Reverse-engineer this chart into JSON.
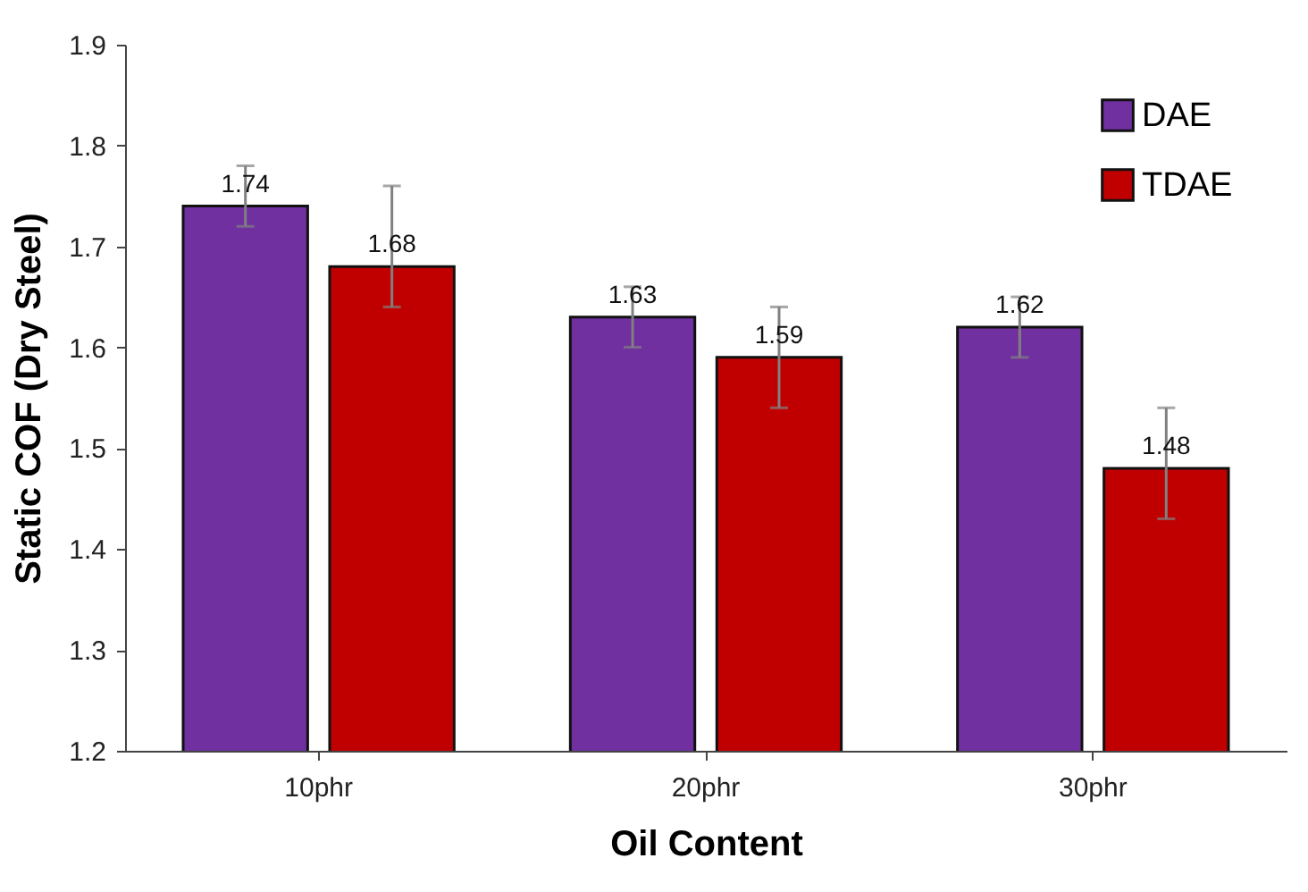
{
  "chart_data": {
    "type": "bar",
    "xlabel": "Oil Content",
    "ylabel": "Static COF (Dry Steel)",
    "categories": [
      "10phr",
      "20phr",
      "30phr"
    ],
    "series": [
      {
        "name": "DAE",
        "color": "#7030a0",
        "values": [
          1.74,
          1.63,
          1.62
        ],
        "errors": [
          [
            1.72,
            1.78
          ],
          [
            1.6,
            1.66
          ],
          [
            1.59,
            1.65
          ]
        ]
      },
      {
        "name": "TDAE",
        "color": "#c00000",
        "values": [
          1.68,
          1.59,
          1.48
        ],
        "errors": [
          [
            1.64,
            1.76
          ],
          [
            1.54,
            1.64
          ],
          [
            1.43,
            1.54
          ]
        ]
      }
    ],
    "ylim": [
      1.2,
      1.9
    ],
    "yticks": [
      1.2,
      1.3,
      1.4,
      1.5,
      1.6,
      1.7,
      1.8,
      1.9
    ],
    "grid": false,
    "legend": "top right",
    "data_labels": true
  }
}
